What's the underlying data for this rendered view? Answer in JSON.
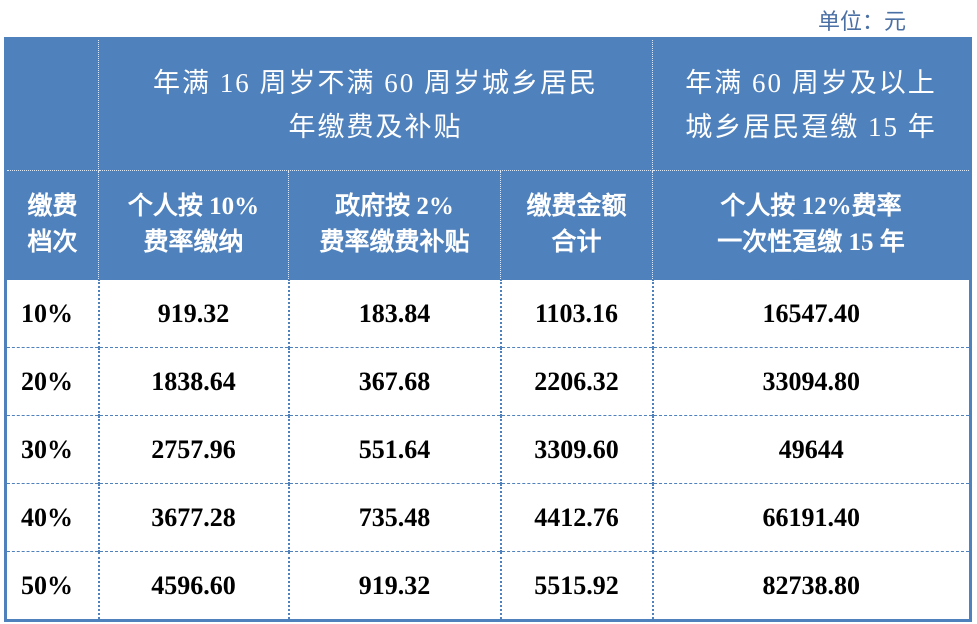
{
  "unit_label": "单位：元",
  "header": {
    "group1": "年满16周岁不满60周岁城乡居民\n年缴费及补贴",
    "group1_line1": "年满 16 周岁不满 60 周岁城乡居民",
    "group1_line2": "年缴费及补贴",
    "group2_line1": "年满 60 周岁及以上",
    "group2_line2": "城乡居民趸缴 15 年",
    "col0": [
      "缴费",
      "档次"
    ],
    "col1": [
      "个人按 10%",
      "费率缴纳"
    ],
    "col2": [
      "政府按 2%",
      "费率缴费补贴"
    ],
    "col3": [
      "缴费金额",
      "合计"
    ],
    "col4": [
      "个人按 12%费率",
      "一次性趸缴 15 年"
    ]
  },
  "rows": [
    [
      "10%",
      "919.32",
      "183.84",
      "1103.16",
      "16547.40"
    ],
    [
      "20%",
      "1838.64",
      "367.68",
      "2206.32",
      "33094.80"
    ],
    [
      "30%",
      "2757.96",
      "551.64",
      "3309.60",
      "49644"
    ],
    [
      "40%",
      "3677.28",
      "735.48",
      "4412.76",
      "66191.40"
    ],
    [
      "50%",
      "4596.60",
      "919.32",
      "5515.92",
      "82738.80"
    ]
  ],
  "colors": {
    "header_bg": "#4f81bd",
    "header_text": "#ffffff",
    "border": "#4f81bd"
  }
}
